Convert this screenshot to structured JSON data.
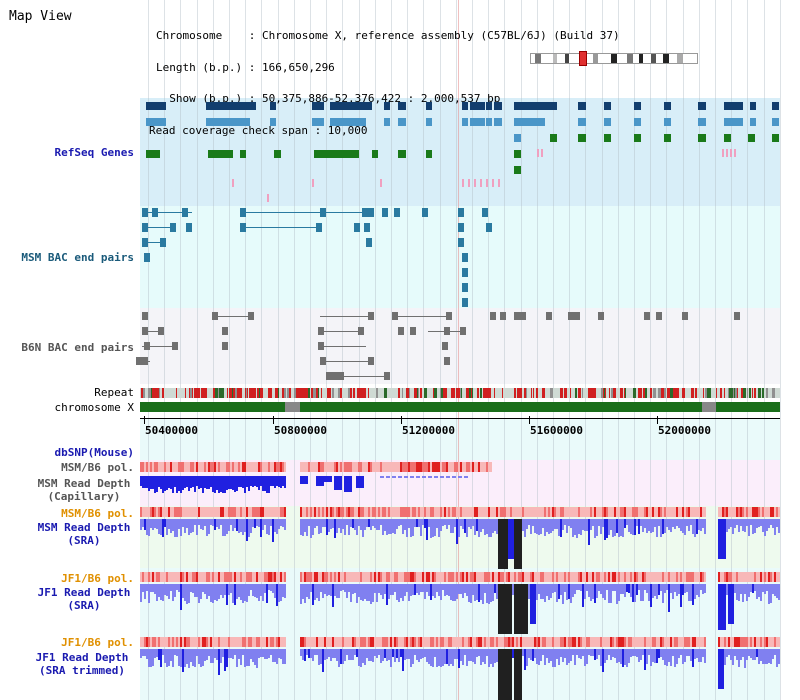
{
  "title": "Map View",
  "info": {
    "chromosome": "Chromosome    : Chromosome X, reference assembly (C57BL/6J) (Build 37)",
    "length": "Length (b.p.) : 166,650,296",
    "show": "  Show (b.p.) : 50,375,886-52,376,422 : 2,000,537 bp",
    "read_coverage": "Read coverage check span : 10,000"
  },
  "tracks": {
    "refseq": "RefSeq Genes",
    "msm_bac": "MSM BAC end pairs",
    "b6n_bac": "B6N BAC end pairs",
    "repeat": "Repeat",
    "chromosome": "chromosome X",
    "dbsnp": "dbSNP(Mouse)",
    "msm_b6_pol_cap": "MSM/B6 pol.",
    "msm_depth_cap": "MSM Read Depth\n(Capillary)",
    "msm_b6_pol_sra": "MSM/B6 pol.",
    "msm_depth_sra": "MSM Read Depth\n(SRA)",
    "jf1_b6_pol_sra": "JF1/B6 pol.",
    "jf1_depth_sra": "JF1 Read Depth\n(SRA)",
    "jf1_b6_pol_trim": "JF1/B6 pol.",
    "jf1_depth_trim": "JF1 Read Depth\n(SRA trimmed)"
  },
  "axis": {
    "ticks": [
      "50400000",
      "50800000",
      "51200000",
      "51600000",
      "52000000"
    ]
  },
  "colors": {
    "refseq_bg": "#d8eef8",
    "bac_bg": "#e6fafa",
    "b6n_bg": "#f4f4f8",
    "chrom_green": "#1a6e1a",
    "depth_blue": "#2020e0",
    "pol_red": "#e03030"
  }
}
